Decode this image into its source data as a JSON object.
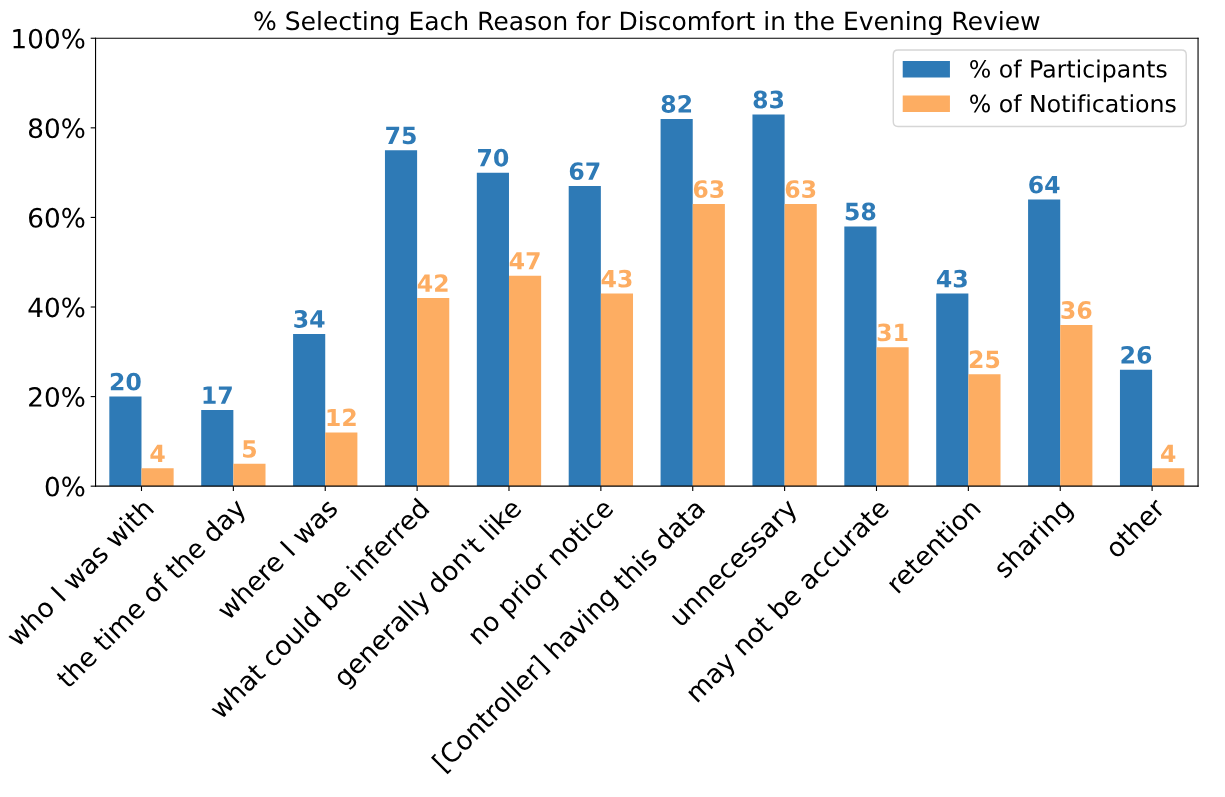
{
  "chart_data": {
    "type": "bar",
    "title": "% Selecting Each Reason for Discomfort in the Evening Review",
    "categories": [
      "who I was with",
      "the time of the day",
      "where I was",
      "what could be inferred",
      "generally don't like",
      "no prior notice",
      "[Controller] having this data",
      "unnecessary",
      "may not be accurate",
      "retention",
      "sharing",
      "other"
    ],
    "series": [
      {
        "name": "% of Participants",
        "color": "#2e7ab6",
        "values": [
          20,
          17,
          34,
          75,
          70,
          67,
          82,
          83,
          58,
          43,
          64,
          26
        ]
      },
      {
        "name": "% of Notifications",
        "color": "#fdad62",
        "values": [
          4,
          5,
          12,
          42,
          47,
          43,
          63,
          63,
          31,
          25,
          36,
          4
        ]
      }
    ],
    "data_labels": true,
    "ylim": [
      0,
      100
    ],
    "yticks": [
      {
        "value": 0,
        "label": "0%"
      },
      {
        "value": 20,
        "label": "20%"
      },
      {
        "value": 40,
        "label": "40%"
      },
      {
        "value": 60,
        "label": "60%"
      },
      {
        "value": 80,
        "label": "80%"
      },
      {
        "value": 100,
        "label": "100%"
      }
    ],
    "legend": "top right",
    "grid": false
  }
}
